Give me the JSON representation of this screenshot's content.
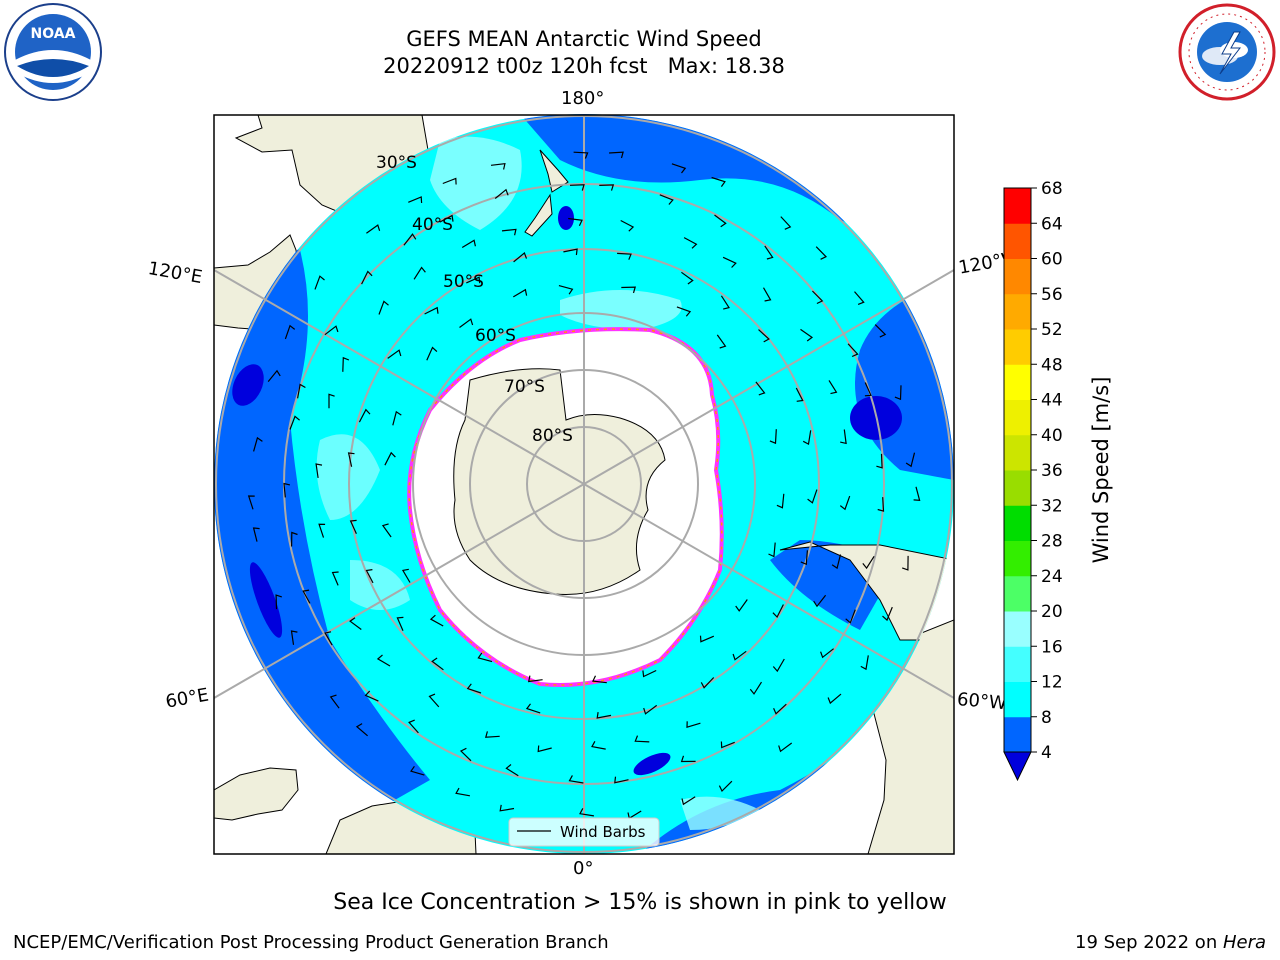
{
  "title": {
    "line1": "GEFS MEAN Antarctic Wind Speed",
    "line2": "20220912 t00z 120h fcst   Max: 18.38"
  },
  "logos": {
    "left": "NOAA",
    "right": "NATIONAL WEATHER SERVICE"
  },
  "map": {
    "projection": "south-polar-stereographic",
    "lon_labels": {
      "top": "180°",
      "left_upper": "120°E",
      "right_upper": "120°W",
      "left_lower": "60°E",
      "right_lower": "60°W",
      "bottom": "0°"
    },
    "lat_labels": [
      "30°S",
      "40°S",
      "50°S",
      "60°S",
      "70°S",
      "80°S"
    ],
    "legend_label": "Wind Barbs",
    "land_color": "#efefdc",
    "ice_edge_colors": [
      "#ff33ff",
      "#ff9900",
      "#ffe000"
    ]
  },
  "colorbar": {
    "label": "Wind Speed [m/s]",
    "ticks": [
      "4",
      "8",
      "12",
      "16",
      "20",
      "24",
      "28",
      "32",
      "36",
      "40",
      "44",
      "48",
      "52",
      "56",
      "60",
      "64",
      "68"
    ],
    "colors": [
      "#0066ff",
      "#00ffff",
      "#44ffff",
      "#99ffff",
      "#4cff66",
      "#33ee00",
      "#00dd00",
      "#99dd00",
      "#cce500",
      "#eef000",
      "#ffff00",
      "#ffcc00",
      "#ffaa00",
      "#ff8800",
      "#ff5500",
      "#ff0000"
    ],
    "under_color": "#0000dd"
  },
  "caption": "Sea Ice Concentration > 15% is shown in pink to yellow",
  "footer": {
    "left": "NCEP/EMC/Verification Post Processing Product Generation Branch",
    "date": "19 Sep 2022 on ",
    "machine": "Hera"
  }
}
